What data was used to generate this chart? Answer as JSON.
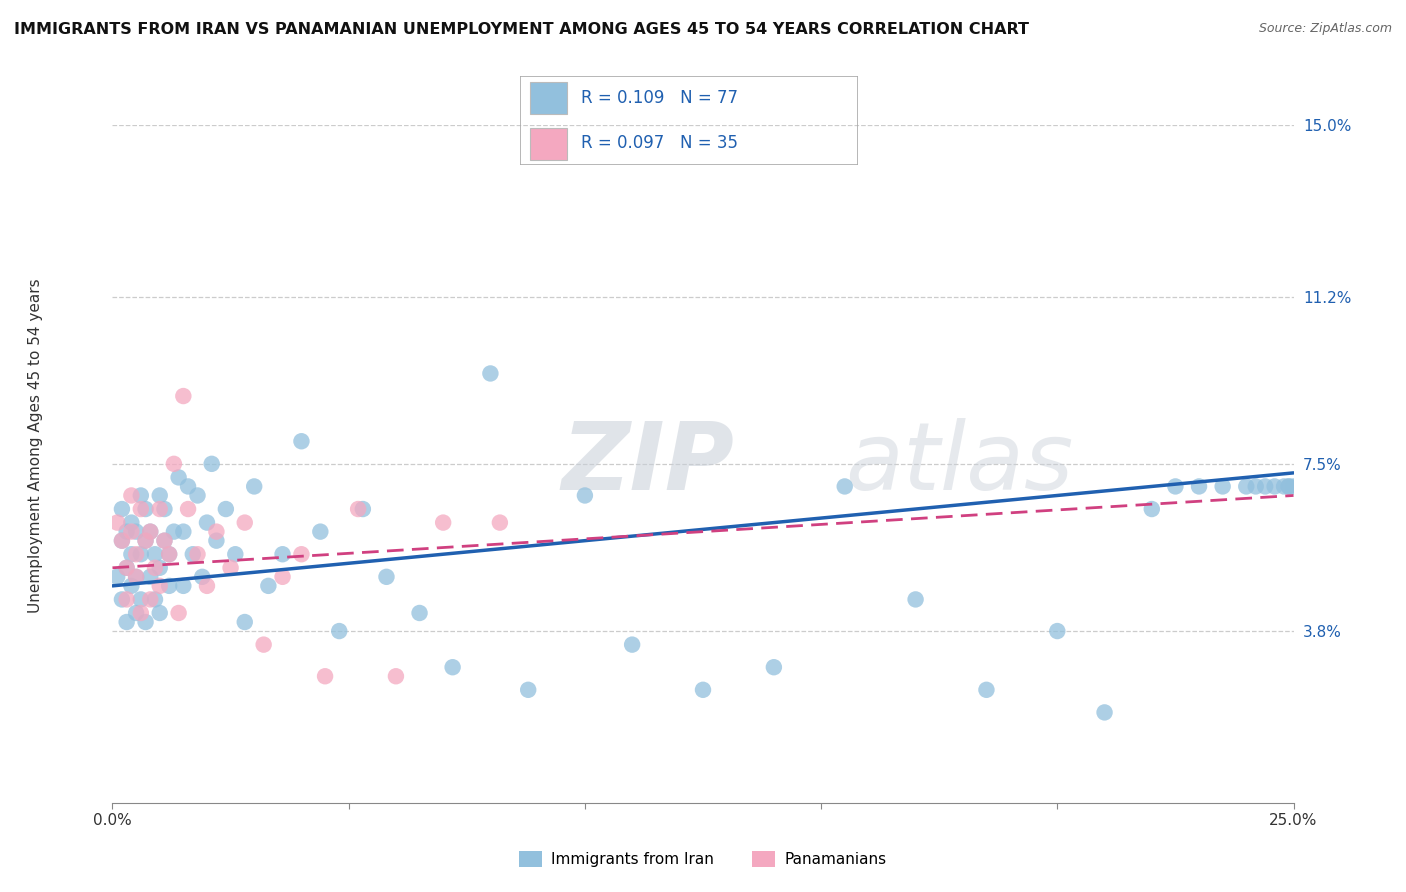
{
  "title": "IMMIGRANTS FROM IRAN VS PANAMANIAN UNEMPLOYMENT AMONG AGES 45 TO 54 YEARS CORRELATION CHART",
  "source": "Source: ZipAtlas.com",
  "ylabel": "Unemployment Among Ages 45 to 54 years",
  "xlim": [
    0.0,
    0.25
  ],
  "ylim": [
    0.0,
    0.15
  ],
  "yticks": [
    0.038,
    0.075,
    0.112,
    0.15
  ],
  "ytick_labels": [
    "3.8%",
    "7.5%",
    "11.2%",
    "15.0%"
  ],
  "blue_scatter_color": "#92c0dd",
  "pink_scatter_color": "#f4a8c0",
  "blue_line_color": "#2060b0",
  "pink_line_color": "#d04080",
  "label_color": "#2060b0",
  "R_blue": 0.109,
  "N_blue": 77,
  "R_pink": 0.097,
  "N_pink": 35,
  "legend_label_blue": "Immigrants from Iran",
  "legend_label_pink": "Panamanians",
  "watermark": "ZIPatlas",
  "grid_color": "#cccccc",
  "blue_x": [
    0.001,
    0.002,
    0.002,
    0.002,
    0.003,
    0.003,
    0.003,
    0.004,
    0.004,
    0.004,
    0.005,
    0.005,
    0.005,
    0.006,
    0.006,
    0.006,
    0.007,
    0.007,
    0.007,
    0.008,
    0.008,
    0.009,
    0.009,
    0.01,
    0.01,
    0.01,
    0.011,
    0.011,
    0.012,
    0.012,
    0.013,
    0.014,
    0.015,
    0.015,
    0.016,
    0.017,
    0.018,
    0.019,
    0.02,
    0.021,
    0.022,
    0.024,
    0.026,
    0.028,
    0.03,
    0.033,
    0.036,
    0.04,
    0.044,
    0.048,
    0.053,
    0.058,
    0.065,
    0.072,
    0.08,
    0.088,
    0.1,
    0.11,
    0.125,
    0.14,
    0.155,
    0.17,
    0.185,
    0.2,
    0.21,
    0.22,
    0.225,
    0.23,
    0.235,
    0.24,
    0.242,
    0.244,
    0.246,
    0.248,
    0.249,
    0.249,
    0.25
  ],
  "blue_y": [
    0.05,
    0.045,
    0.058,
    0.065,
    0.04,
    0.052,
    0.06,
    0.048,
    0.055,
    0.062,
    0.042,
    0.05,
    0.06,
    0.045,
    0.055,
    0.068,
    0.04,
    0.058,
    0.065,
    0.05,
    0.06,
    0.045,
    0.055,
    0.042,
    0.052,
    0.068,
    0.058,
    0.065,
    0.048,
    0.055,
    0.06,
    0.072,
    0.048,
    0.06,
    0.07,
    0.055,
    0.068,
    0.05,
    0.062,
    0.075,
    0.058,
    0.065,
    0.055,
    0.04,
    0.07,
    0.048,
    0.055,
    0.08,
    0.06,
    0.038,
    0.065,
    0.05,
    0.042,
    0.03,
    0.095,
    0.025,
    0.068,
    0.035,
    0.025,
    0.03,
    0.07,
    0.045,
    0.025,
    0.038,
    0.02,
    0.065,
    0.07,
    0.07,
    0.07,
    0.07,
    0.07,
    0.07,
    0.07,
    0.07,
    0.07,
    0.07,
    0.07
  ],
  "pink_x": [
    0.001,
    0.002,
    0.003,
    0.003,
    0.004,
    0.004,
    0.005,
    0.005,
    0.006,
    0.006,
    0.007,
    0.008,
    0.008,
    0.009,
    0.01,
    0.01,
    0.011,
    0.012,
    0.013,
    0.014,
    0.015,
    0.016,
    0.018,
    0.02,
    0.022,
    0.025,
    0.028,
    0.032,
    0.036,
    0.04,
    0.045,
    0.052,
    0.06,
    0.07,
    0.082
  ],
  "pink_y": [
    0.062,
    0.058,
    0.045,
    0.052,
    0.06,
    0.068,
    0.05,
    0.055,
    0.042,
    0.065,
    0.058,
    0.045,
    0.06,
    0.052,
    0.048,
    0.065,
    0.058,
    0.055,
    0.075,
    0.042,
    0.09,
    0.065,
    0.055,
    0.048,
    0.06,
    0.052,
    0.062,
    0.035,
    0.05,
    0.055,
    0.028,
    0.065,
    0.028,
    0.062,
    0.062
  ],
  "trend_blue_x0": 0.0,
  "trend_blue_y0": 0.048,
  "trend_blue_x1": 0.25,
  "trend_blue_y1": 0.073,
  "trend_pink_x0": 0.0,
  "trend_pink_y0": 0.052,
  "trend_pink_x1": 0.25,
  "trend_pink_y1": 0.068
}
